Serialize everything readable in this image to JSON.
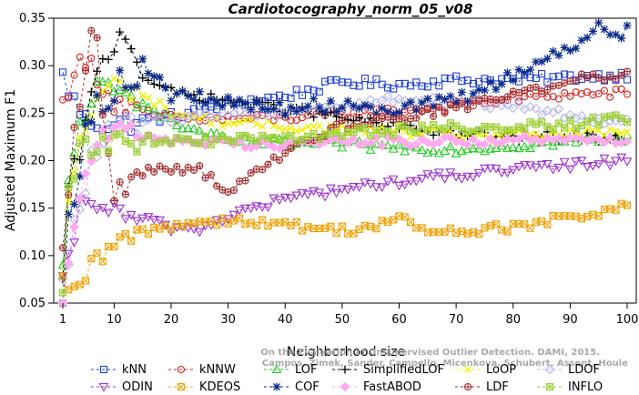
{
  "chart_data": {
    "type": "line",
    "title": "Cardiotocography_norm_05_v08",
    "xlabel": "Neighborhood size",
    "ylabel": "Adjusted Maximum F1",
    "xlim": [
      1,
      100
    ],
    "ylim": [
      0.05,
      0.35
    ],
    "xticks": [
      1,
      10,
      20,
      30,
      40,
      50,
      60,
      70,
      80,
      90,
      100
    ],
    "yticks": [
      0.05,
      0.1,
      0.15,
      0.2,
      0.25,
      0.3,
      0.35
    ],
    "ytick_labels": [
      "0.05",
      "0.10",
      "0.15",
      "0.20",
      "0.25",
      "0.30",
      "0.35"
    ],
    "grid": false,
    "legend_position": "bottom",
    "watermark": "Campos, Zimek, Sander, Campello, Micenkova, Schubert, Assent, Houle",
    "watermark_line1": "On the Evaluation of Unsupervised Outlier Detection. DAMI, 2015.",
    "series": [
      {
        "name": "kNN",
        "color": "#1f3fd6",
        "marker": "square",
        "anchors": [
          [
            1,
            0.288
          ],
          [
            3,
            0.262
          ],
          [
            5,
            0.242
          ],
          [
            10,
            0.238
          ],
          [
            20,
            0.247
          ],
          [
            30,
            0.26
          ],
          [
            40,
            0.268
          ],
          [
            50,
            0.283
          ],
          [
            60,
            0.28
          ],
          [
            70,
            0.285
          ],
          [
            80,
            0.285
          ],
          [
            90,
            0.288
          ],
          [
            100,
            0.29
          ]
        ]
      },
      {
        "name": "kNNW",
        "color": "#d62020",
        "marker": "circle",
        "anchors": [
          [
            1,
            0.258
          ],
          [
            3,
            0.298
          ],
          [
            6,
            0.3
          ],
          [
            10,
            0.262
          ],
          [
            15,
            0.25
          ],
          [
            20,
            0.244
          ],
          [
            30,
            0.244
          ],
          [
            40,
            0.245
          ],
          [
            50,
            0.249
          ],
          [
            60,
            0.252
          ],
          [
            70,
            0.258
          ],
          [
            80,
            0.265
          ],
          [
            90,
            0.27
          ],
          [
            100,
            0.271
          ]
        ]
      },
      {
        "name": "LOF",
        "color": "#22cc22",
        "marker": "triangle",
        "anchors": [
          [
            1,
            0.083
          ],
          [
            2,
            0.172
          ],
          [
            4,
            0.24
          ],
          [
            7,
            0.275
          ],
          [
            10,
            0.27
          ],
          [
            15,
            0.265
          ],
          [
            20,
            0.24
          ],
          [
            30,
            0.22
          ],
          [
            40,
            0.218
          ],
          [
            50,
            0.217
          ],
          [
            60,
            0.214
          ],
          [
            70,
            0.212
          ],
          [
            80,
            0.216
          ],
          [
            90,
            0.22
          ],
          [
            100,
            0.224
          ]
        ]
      },
      {
        "name": "SimplifiedLOF",
        "color": "#000000",
        "marker": "plus",
        "anchors": [
          [
            1,
            0.068
          ],
          [
            2,
            0.17
          ],
          [
            4,
            0.21
          ],
          [
            7,
            0.29
          ],
          [
            10,
            0.322
          ],
          [
            12,
            0.338
          ],
          [
            15,
            0.29
          ],
          [
            20,
            0.272
          ],
          [
            30,
            0.263
          ],
          [
            40,
            0.255
          ],
          [
            50,
            0.245
          ],
          [
            60,
            0.235
          ],
          [
            70,
            0.228
          ],
          [
            80,
            0.225
          ],
          [
            90,
            0.226
          ],
          [
            100,
            0.224
          ]
        ]
      },
      {
        "name": "LoOP",
        "color": "#f2f200",
        "marker": "x",
        "anchors": [
          [
            1,
            0.07
          ],
          [
            2,
            0.16
          ],
          [
            4,
            0.22
          ],
          [
            7,
            0.265
          ],
          [
            10,
            0.28
          ],
          [
            15,
            0.27
          ],
          [
            20,
            0.25
          ],
          [
            30,
            0.24
          ],
          [
            40,
            0.236
          ],
          [
            50,
            0.233
          ],
          [
            60,
            0.23
          ],
          [
            70,
            0.228
          ],
          [
            80,
            0.227
          ],
          [
            90,
            0.228
          ],
          [
            100,
            0.23
          ]
        ]
      },
      {
        "name": "LDOF",
        "color": "#b3b3ee",
        "marker": "diamond",
        "anchors": [
          [
            1,
            0.065
          ],
          [
            3,
            0.13
          ],
          [
            6,
            0.2
          ],
          [
            10,
            0.235
          ],
          [
            20,
            0.245
          ],
          [
            30,
            0.25
          ],
          [
            40,
            0.252
          ],
          [
            50,
            0.258
          ],
          [
            60,
            0.265
          ],
          [
            70,
            0.262
          ],
          [
            80,
            0.258
          ],
          [
            90,
            0.248
          ],
          [
            100,
            0.24
          ]
        ]
      },
      {
        "name": "ODIN",
        "color": "#9b30d0",
        "marker": "triangle-down",
        "anchors": [
          [
            1,
            0.068
          ],
          [
            2,
            0.09
          ],
          [
            4,
            0.15
          ],
          [
            7,
            0.158
          ],
          [
            10,
            0.145
          ],
          [
            15,
            0.138
          ],
          [
            20,
            0.13
          ],
          [
            25,
            0.128
          ],
          [
            30,
            0.142
          ],
          [
            40,
            0.16
          ],
          [
            50,
            0.17
          ],
          [
            60,
            0.178
          ],
          [
            70,
            0.185
          ],
          [
            80,
            0.19
          ],
          [
            90,
            0.195
          ],
          [
            100,
            0.202
          ]
        ]
      },
      {
        "name": "KDEOS",
        "color": "#f0a000",
        "marker": "square-x",
        "anchors": [
          [
            1,
            0.067
          ],
          [
            2,
            0.057
          ],
          [
            4,
            0.07
          ],
          [
            6,
            0.085
          ],
          [
            8,
            0.1
          ],
          [
            10,
            0.11
          ],
          [
            15,
            0.125
          ],
          [
            20,
            0.132
          ],
          [
            30,
            0.138
          ],
          [
            40,
            0.132
          ],
          [
            50,
            0.127
          ],
          [
            55,
            0.13
          ],
          [
            60,
            0.14
          ],
          [
            65,
            0.125
          ],
          [
            70,
            0.125
          ],
          [
            80,
            0.13
          ],
          [
            90,
            0.14
          ],
          [
            100,
            0.152
          ]
        ]
      },
      {
        "name": "COF",
        "color": "#0a2a8a",
        "marker": "asterisk",
        "anchors": [
          [
            1,
            0.068
          ],
          [
            2,
            0.14
          ],
          [
            4,
            0.2
          ],
          [
            7,
            0.26
          ],
          [
            10,
            0.28
          ],
          [
            15,
            0.3
          ],
          [
            20,
            0.27
          ],
          [
            30,
            0.26
          ],
          [
            40,
            0.255
          ],
          [
            50,
            0.26
          ],
          [
            60,
            0.255
          ],
          [
            70,
            0.262
          ],
          [
            80,
            0.29
          ],
          [
            90,
            0.32
          ],
          [
            95,
            0.34
          ],
          [
            100,
            0.335
          ]
        ]
      },
      {
        "name": "FastABOD",
        "color": "#ffaaee",
        "marker": "diamond-filled",
        "anchors": [
          [
            1,
            0.06
          ],
          [
            3,
            0.13
          ],
          [
            6,
            0.21
          ],
          [
            10,
            0.232
          ],
          [
            20,
            0.222
          ],
          [
            30,
            0.218
          ],
          [
            40,
            0.218
          ],
          [
            50,
            0.22
          ],
          [
            60,
            0.22
          ],
          [
            70,
            0.22
          ],
          [
            80,
            0.222
          ],
          [
            90,
            0.221
          ],
          [
            100,
            0.222
          ]
        ]
      },
      {
        "name": "LDF",
        "color": "#a02828",
        "marker": "circle-plus",
        "anchors": [
          [
            1,
            0.118
          ],
          [
            3,
            0.225
          ],
          [
            5,
            0.3
          ],
          [
            6,
            0.335
          ],
          [
            7,
            0.333
          ],
          [
            8,
            0.24
          ],
          [
            10,
            0.165
          ],
          [
            13,
            0.18
          ],
          [
            16,
            0.19
          ],
          [
            20,
            0.192
          ],
          [
            25,
            0.192
          ],
          [
            30,
            0.165
          ],
          [
            35,
            0.188
          ],
          [
            40,
            0.208
          ],
          [
            45,
            0.225
          ],
          [
            50,
            0.238
          ],
          [
            60,
            0.245
          ],
          [
            70,
            0.255
          ],
          [
            80,
            0.27
          ],
          [
            90,
            0.285
          ],
          [
            100,
            0.292
          ]
        ]
      },
      {
        "name": "INFLO",
        "color": "#9acd32",
        "marker": "star-box",
        "anchors": [
          [
            1,
            0.07
          ],
          [
            2,
            0.16
          ],
          [
            4,
            0.21
          ],
          [
            8,
            0.22
          ],
          [
            20,
            0.222
          ],
          [
            30,
            0.221
          ],
          [
            40,
            0.224
          ],
          [
            50,
            0.228
          ],
          [
            60,
            0.232
          ],
          [
            70,
            0.235
          ],
          [
            80,
            0.236
          ],
          [
            90,
            0.238
          ],
          [
            100,
            0.245
          ]
        ]
      }
    ]
  }
}
